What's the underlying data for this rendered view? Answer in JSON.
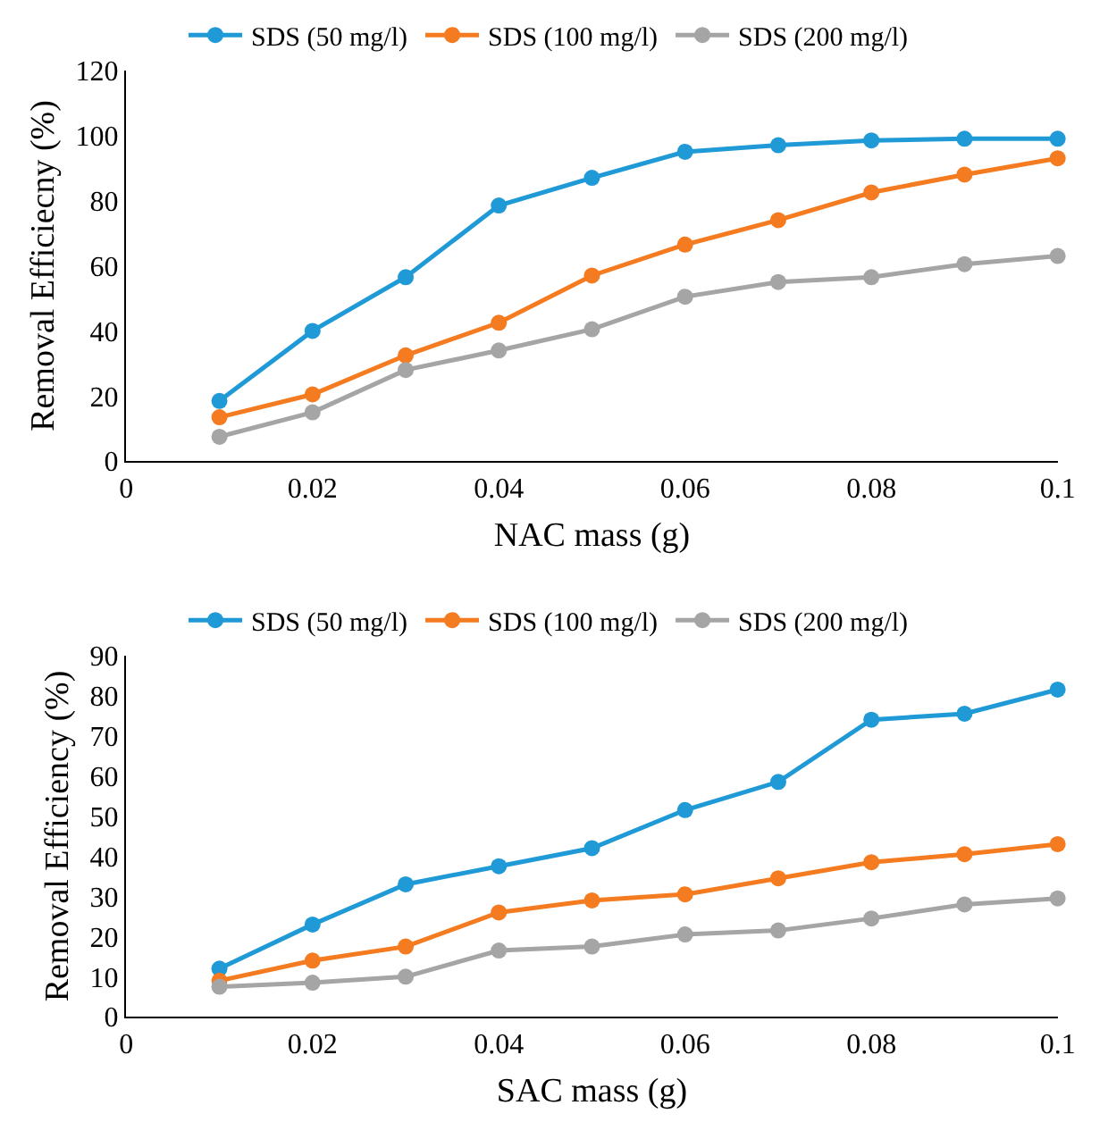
{
  "chart_data": [
    {
      "type": "line",
      "xlabel": "NAC mass (g)",
      "ylabel": "Removal Efficiecny (%)",
      "x": [
        0.01,
        0.02,
        0.03,
        0.04,
        0.05,
        0.06,
        0.07,
        0.08,
        0.09,
        0.1
      ],
      "xlim": [
        0,
        0.1
      ],
      "xticks": [
        0,
        0.02,
        0.04,
        0.06,
        0.08,
        0.1
      ],
      "ylim": [
        0,
        120
      ],
      "yticks": [
        0,
        20,
        40,
        60,
        80,
        100,
        120
      ],
      "legend": "top",
      "marker": "circle",
      "line_style": "solid",
      "series": [
        {
          "name": "SDS (50 mg/l)",
          "color": "#1f9ad6",
          "values": [
            18.5,
            40,
            56.5,
            78.5,
            87,
            95,
            97,
            98.5,
            99,
            99
          ]
        },
        {
          "name": "SDS (100 mg/l)",
          "color": "#f47b20",
          "values": [
            13.5,
            20.5,
            32.5,
            42.5,
            57,
            66.5,
            74,
            82.5,
            88,
            93
          ]
        },
        {
          "name": "SDS (200 mg/l)",
          "color": "#a5a5a5",
          "values": [
            7.5,
            15,
            28,
            34,
            40.5,
            50.5,
            55,
            56.5,
            60.5,
            63
          ]
        }
      ]
    },
    {
      "type": "line",
      "xlabel": "SAC mass (g)",
      "ylabel": "Removal Efficiency (%)",
      "x": [
        0.01,
        0.02,
        0.03,
        0.04,
        0.05,
        0.06,
        0.07,
        0.08,
        0.09,
        0.1
      ],
      "xlim": [
        0,
        0.1
      ],
      "xticks": [
        0,
        0.02,
        0.04,
        0.06,
        0.08,
        0.1
      ],
      "ylim": [
        0,
        90
      ],
      "yticks": [
        0,
        10,
        20,
        30,
        40,
        50,
        60,
        70,
        80,
        90
      ],
      "legend": "top",
      "marker": "circle",
      "line_style": "solid",
      "series": [
        {
          "name": "SDS (50 mg/l)",
          "color": "#1f9ad6",
          "values": [
            12,
            23,
            33,
            37.5,
            42,
            51.5,
            58.5,
            74,
            75.5,
            81.5
          ]
        },
        {
          "name": "SDS (100 mg/l)",
          "color": "#f47b20",
          "values": [
            9,
            14,
            17.5,
            26,
            29,
            30.5,
            34.5,
            38.5,
            40.5,
            43
          ]
        },
        {
          "name": "SDS (200 mg/l)",
          "color": "#a5a5a5",
          "values": [
            7.5,
            8.5,
            10,
            16.5,
            17.5,
            20.5,
            21.5,
            24.5,
            28,
            29.5
          ]
        }
      ]
    }
  ]
}
